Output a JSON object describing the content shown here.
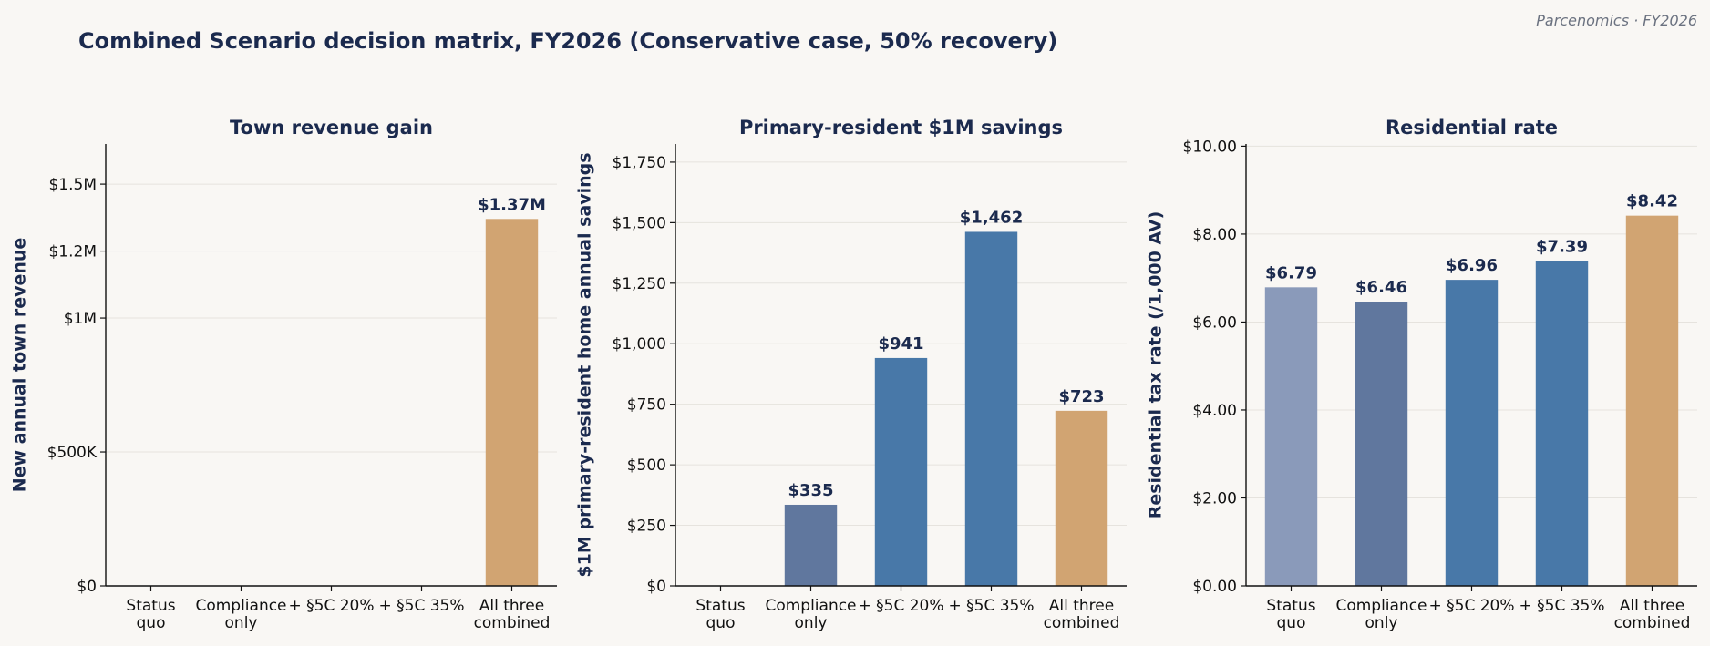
{
  "title": "Combined Scenario decision matrix, FY2026 (Conservative case, 50% recovery)",
  "watermark": "Parcenomics · FY2026",
  "chart_data": [
    {
      "type": "bar",
      "title": "Town revenue gain",
      "ylabel": "New annual town revenue",
      "categories": [
        "Status\nquo",
        "Compliance\nonly",
        "+ §5C 20%",
        "+ §5C 35%",
        "All three\ncombined"
      ],
      "values": [
        0,
        0,
        0,
        0,
        1370000
      ],
      "data_labels": [
        "",
        "",
        "",
        "",
        "$1.37M"
      ],
      "colors": [
        "#8a9aba",
        "#60779e",
        "#4878a8",
        "#4878a8",
        "#d1a472"
      ],
      "ylim": [
        0,
        1650000
      ],
      "yticks": [
        {
          "value": 0,
          "label": "$0"
        },
        {
          "value": 500000,
          "label": "$500K"
        },
        {
          "value": 1000000,
          "label": "$1M"
        },
        {
          "value": 1250000,
          "label": "$1.2M"
        },
        {
          "value": 1500000,
          "label": "$1.5M"
        }
      ],
      "grid": true
    },
    {
      "type": "bar",
      "title": "Primary-resident $1M savings",
      "ylabel": "$1M primary-resident home annual savings",
      "categories": [
        "Status\nquo",
        "Compliance\nonly",
        "+ §5C 20%",
        "+ §5C 35%",
        "All three\ncombined"
      ],
      "values": [
        0,
        335,
        941,
        1462,
        723
      ],
      "data_labels": [
        "",
        "$335",
        "$941",
        "$1,462",
        "$723"
      ],
      "colors": [
        "#8a9aba",
        "#60779e",
        "#4878a8",
        "#4878a8",
        "#d1a472"
      ],
      "ylim": [
        0,
        1825
      ],
      "yticks": [
        {
          "value": 0,
          "label": "$0"
        },
        {
          "value": 250,
          "label": "$250"
        },
        {
          "value": 500,
          "label": "$500"
        },
        {
          "value": 750,
          "label": "$750"
        },
        {
          "value": 1000,
          "label": "$1,000"
        },
        {
          "value": 1250,
          "label": "$1,250"
        },
        {
          "value": 1500,
          "label": "$1,500"
        },
        {
          "value": 1750,
          "label": "$1,750"
        }
      ],
      "grid": true
    },
    {
      "type": "bar",
      "title": "Residential rate",
      "ylabel": "Residential tax rate (/1,000 AV)",
      "categories": [
        "Status\nquo",
        "Compliance\nonly",
        "+ §5C 20%",
        "+ §5C 35%",
        "All three\ncombined"
      ],
      "values": [
        6.79,
        6.46,
        6.96,
        7.39,
        8.42
      ],
      "data_labels": [
        "$6.79",
        "$6.46",
        "$6.96",
        "$7.39",
        "$8.42"
      ],
      "colors": [
        "#8a9aba",
        "#60779e",
        "#4878a8",
        "#4878a8",
        "#d1a472"
      ],
      "ylim": [
        0,
        10.05
      ],
      "yticks": [
        {
          "value": 0,
          "label": "$0.00"
        },
        {
          "value": 2,
          "label": "$2.00"
        },
        {
          "value": 4,
          "label": "$4.00"
        },
        {
          "value": 6,
          "label": "$6.00"
        },
        {
          "value": 8,
          "label": "$8.00"
        },
        {
          "value": 10,
          "label": "$10.00"
        }
      ],
      "grid": true
    }
  ]
}
